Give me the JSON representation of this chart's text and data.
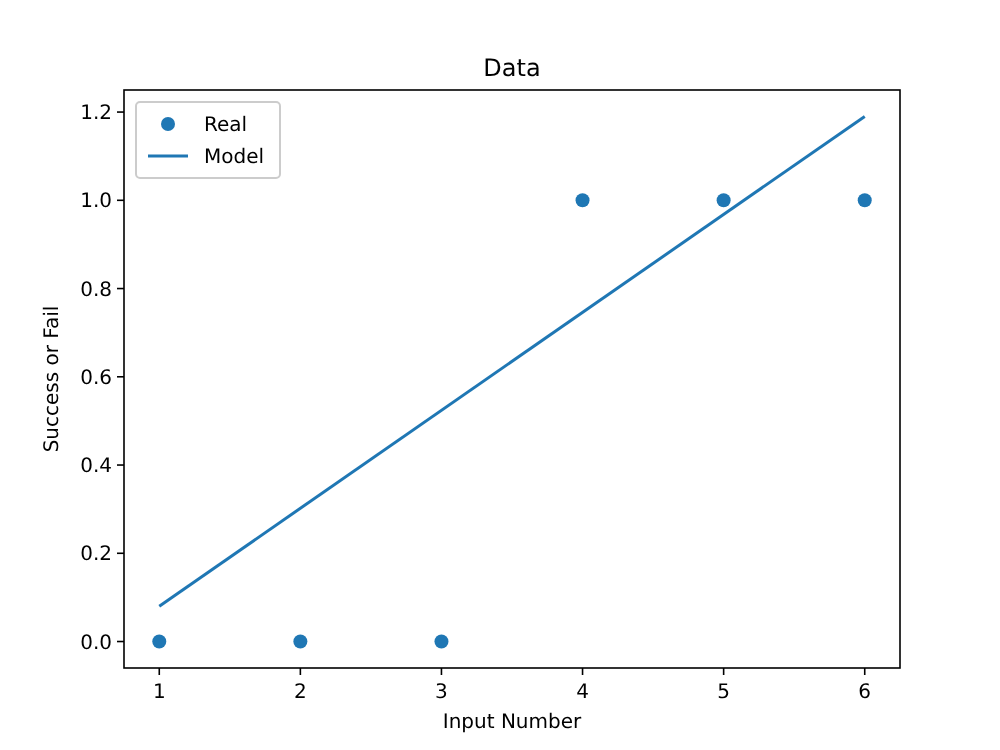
{
  "chart_data": {
    "type": "scatter",
    "title": "Data",
    "xlabel": "Input Number",
    "ylabel": "Success or Fail",
    "xlim": [
      0.75,
      6.25
    ],
    "xticks": [
      1,
      2,
      3,
      4,
      5,
      6
    ],
    "ylim": [
      -0.06,
      1.25
    ],
    "yticks": [
      {
        "value": 0,
        "label": "0.0"
      },
      {
        "value": 0.2,
        "label": "0.2"
      },
      {
        "value": 0.4,
        "label": "0.4"
      },
      {
        "value": 0.6,
        "label": "0.6"
      },
      {
        "value": 0.8,
        "label": "0.8"
      },
      {
        "value": 1,
        "label": "1.0"
      },
      {
        "value": 1.2,
        "label": "1.2"
      }
    ],
    "legend": "top left",
    "grid": false,
    "series": [
      {
        "name": "Real",
        "marker": "circle",
        "color": "#1f77b4",
        "x": [
          1,
          2,
          3,
          4,
          5,
          6
        ],
        "values": [
          0,
          0,
          0,
          1,
          1,
          1
        ]
      },
      {
        "name": "Model",
        "type": "line",
        "color": "#1f77b4",
        "x": [
          1,
          6
        ],
        "values": [
          0.08,
          1.19
        ],
        "line_style": "solid"
      }
    ]
  }
}
